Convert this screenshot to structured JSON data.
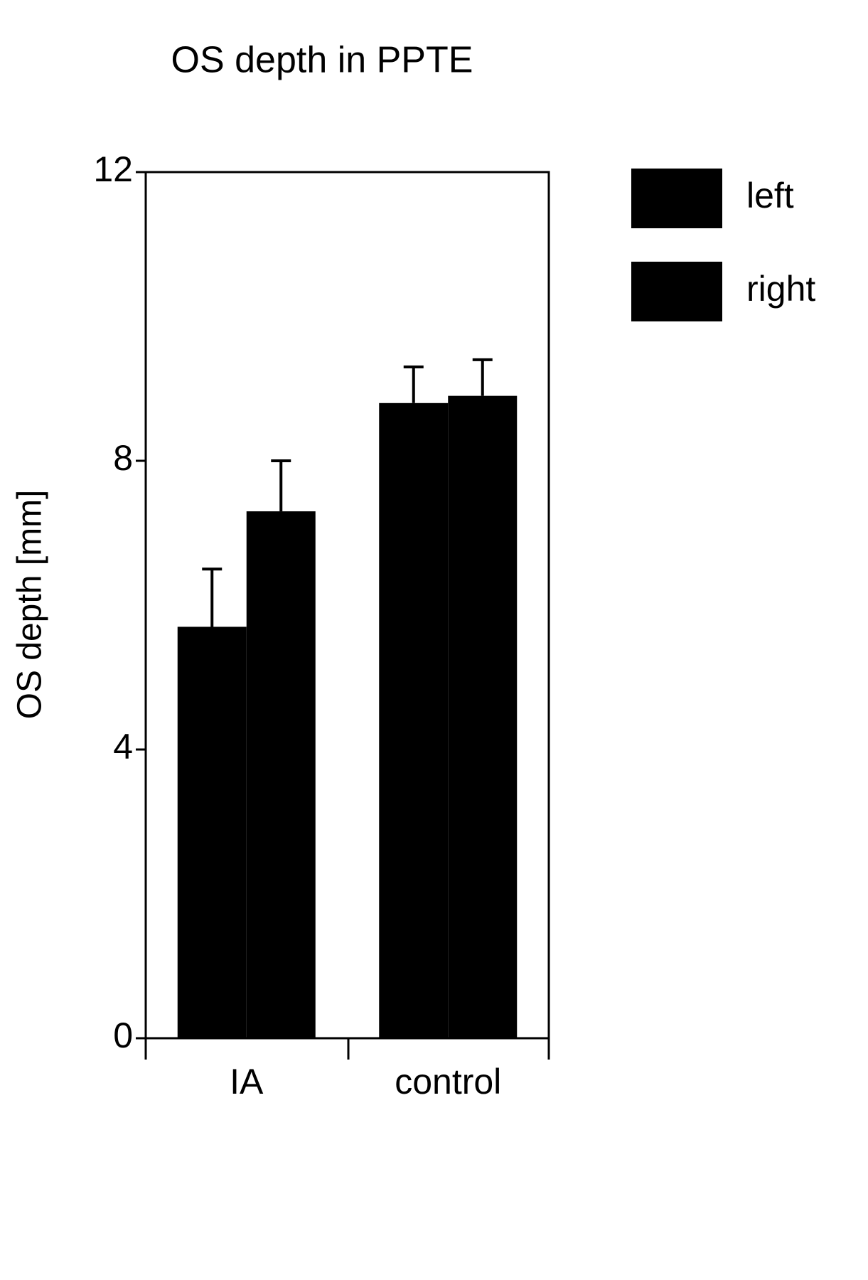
{
  "chart_data": {
    "type": "bar",
    "title": "OS depth in PPTE",
    "y_label": "OS depth [mm]",
    "categories": [
      "IA",
      "control"
    ],
    "series": [
      {
        "name": "left",
        "color": "#000000",
        "values": [
          5.7,
          8.8
        ],
        "errors": [
          0.8,
          0.5
        ]
      },
      {
        "name": "right",
        "color": "#000000",
        "values": [
          7.3,
          8.9
        ],
        "errors": [
          0.7,
          0.5
        ]
      }
    ],
    "ylim": [
      0,
      12
    ],
    "yticks": [
      0,
      4,
      8,
      12
    ],
    "legend": "right"
  }
}
